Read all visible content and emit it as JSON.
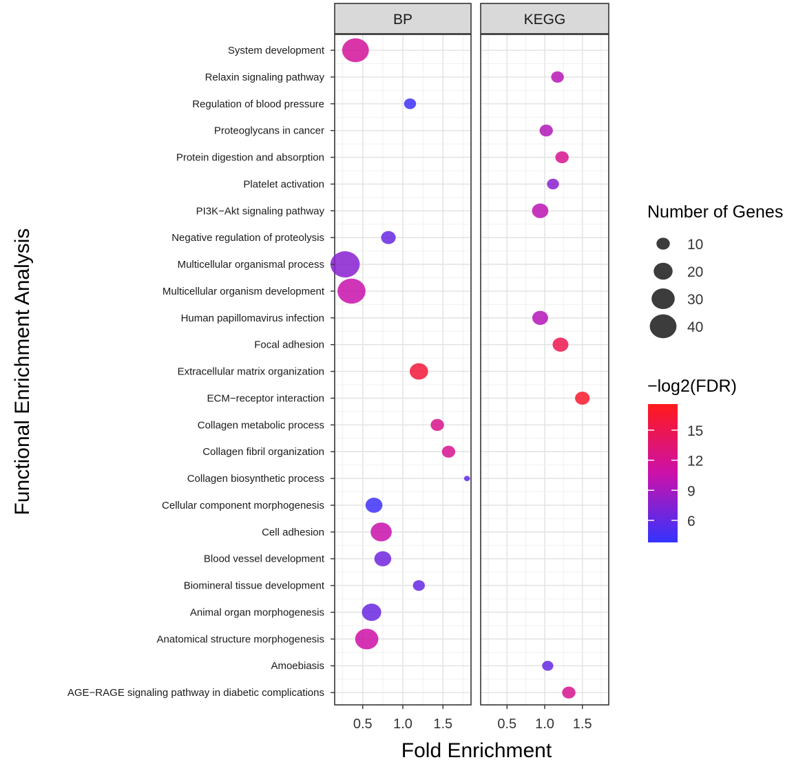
{
  "chart_data": {
    "type": "scatter",
    "xlabel": "Fold Enrichment",
    "ylabel": "Functional Enrichment Analysis",
    "facets": [
      "BP",
      "KEGG"
    ],
    "x_ticks": [
      0.5,
      1.0,
      1.5
    ],
    "x_tick_labels": [
      "0.5",
      "1.0",
      "1.5"
    ],
    "xlim": [
      0.15,
      1.85
    ],
    "categories": [
      "System development",
      "Relaxin signaling pathway",
      "Regulation of blood pressure",
      "Proteoglycans in cancer",
      "Protein digestion and absorption",
      "Platelet activation",
      "PI3K−Akt signaling pathway",
      "Negative regulation of proteolysis",
      "Multicellular organismal process",
      "Multicellular organism development",
      "Human papillomavirus infection",
      "Focal adhesion",
      "Extracellular matrix organization",
      "ECM−receptor interaction",
      "Collagen metabolic process",
      "Collagen fibril organization",
      "Collagen biosynthetic process",
      "Cellular component morphogenesis",
      "Cell adhesion",
      "Blood vessel development",
      "Biomineral tissue development",
      "Animal organ morphogenesis",
      "Anatomical structure morphogenesis",
      "Amoebiasis",
      "AGE−RAGE signaling pathway in diabetic complications"
    ],
    "points": [
      {
        "facet": "BP",
        "term": "System development",
        "fold": 0.41,
        "genes": 40,
        "log2fdr": 11.5
      },
      {
        "facet": "BP",
        "term": "Regulation of blood pressure",
        "fold": 1.09,
        "genes": 8,
        "log2fdr": 4.3
      },
      {
        "facet": "BP",
        "term": "Negative regulation of proteolysis",
        "fold": 0.82,
        "genes": 12,
        "log2fdr": 6.2
      },
      {
        "facet": "BP",
        "term": "Multicellular organismal process",
        "fold": 0.28,
        "genes": 48,
        "log2fdr": 7.6
      },
      {
        "facet": "BP",
        "term": "Multicellular organism development",
        "fold": 0.36,
        "genes": 44,
        "log2fdr": 10.5
      },
      {
        "facet": "BP",
        "term": "Extracellular matrix organization",
        "fold": 1.2,
        "genes": 19,
        "log2fdr": 16.0
      },
      {
        "facet": "BP",
        "term": "Collagen metabolic process",
        "fold": 1.43,
        "genes": 10,
        "log2fdr": 12.2
      },
      {
        "facet": "BP",
        "term": "Collagen fibril organization",
        "fold": 1.57,
        "genes": 10,
        "log2fdr": 12.0
      },
      {
        "facet": "BP",
        "term": "Collagen biosynthetic process",
        "fold": 1.8,
        "genes": 2,
        "log2fdr": 5.8
      },
      {
        "facet": "BP",
        "term": "Cellular component morphogenesis",
        "fold": 0.64,
        "genes": 16,
        "log2fdr": 4.3
      },
      {
        "facet": "BP",
        "term": "Cell adhesion",
        "fold": 0.73,
        "genes": 25,
        "log2fdr": 10.5
      },
      {
        "facet": "BP",
        "term": "Blood vessel development",
        "fold": 0.75,
        "genes": 16,
        "log2fdr": 6.6
      },
      {
        "facet": "BP",
        "term": "Biomineral tissue development",
        "fold": 1.2,
        "genes": 8,
        "log2fdr": 6.1
      },
      {
        "facet": "BP",
        "term": "Animal organ morphogenesis",
        "fold": 0.61,
        "genes": 21,
        "log2fdr": 6.2
      },
      {
        "facet": "BP",
        "term": "Anatomical structure morphogenesis",
        "fold": 0.55,
        "genes": 30,
        "log2fdr": 10.9
      },
      {
        "facet": "KEGG",
        "term": "Relaxin signaling pathway",
        "fold": 1.17,
        "genes": 9,
        "log2fdr": 9.8
      },
      {
        "facet": "KEGG",
        "term": "Proteoglycans in cancer",
        "fold": 1.02,
        "genes": 10,
        "log2fdr": 9.5
      },
      {
        "facet": "KEGG",
        "term": "Protein digestion and absorption",
        "fold": 1.23,
        "genes": 10,
        "log2fdr": 12.0
      },
      {
        "facet": "KEGG",
        "term": "Platelet activation",
        "fold": 1.11,
        "genes": 8,
        "log2fdr": 7.8
      },
      {
        "facet": "KEGG",
        "term": "PI3K−Akt signaling pathway",
        "fold": 0.94,
        "genes": 15,
        "log2fdr": 10.0
      },
      {
        "facet": "KEGG",
        "term": "Human papillomavirus infection",
        "fold": 0.94,
        "genes": 14,
        "log2fdr": 9.6
      },
      {
        "facet": "KEGG",
        "term": "Focal adhesion",
        "fold": 1.21,
        "genes": 14,
        "log2fdr": 15.0
      },
      {
        "facet": "KEGG",
        "term": "ECM−receptor interaction",
        "fold": 1.5,
        "genes": 12,
        "log2fdr": 16.8
      },
      {
        "facet": "KEGG",
        "term": "Amoebiasis",
        "fold": 1.04,
        "genes": 7,
        "log2fdr": 6.0
      },
      {
        "facet": "KEGG",
        "term": "AGE−RAGE signaling pathway in diabetic complications",
        "fold": 1.32,
        "genes": 10,
        "log2fdr": 12.0
      }
    ],
    "size_legend": {
      "title": "Number of Genes",
      "breaks": [
        10,
        20,
        30,
        40
      ],
      "labels": [
        "10",
        "20",
        "30",
        "40"
      ],
      "max_genes": 48
    },
    "color_legend": {
      "title": "−log2(FDR)",
      "breaks": [
        6,
        9,
        12,
        15
      ],
      "labels": [
        "6",
        "9",
        "12",
        "15"
      ],
      "range": [
        3.8,
        17.6
      ],
      "low_color": "#3333ff",
      "mid_color": "#cc11aa",
      "high_color": "#ff1a1a"
    },
    "strip_color": "#d9d9d9",
    "point_opacity": 0.85
  }
}
